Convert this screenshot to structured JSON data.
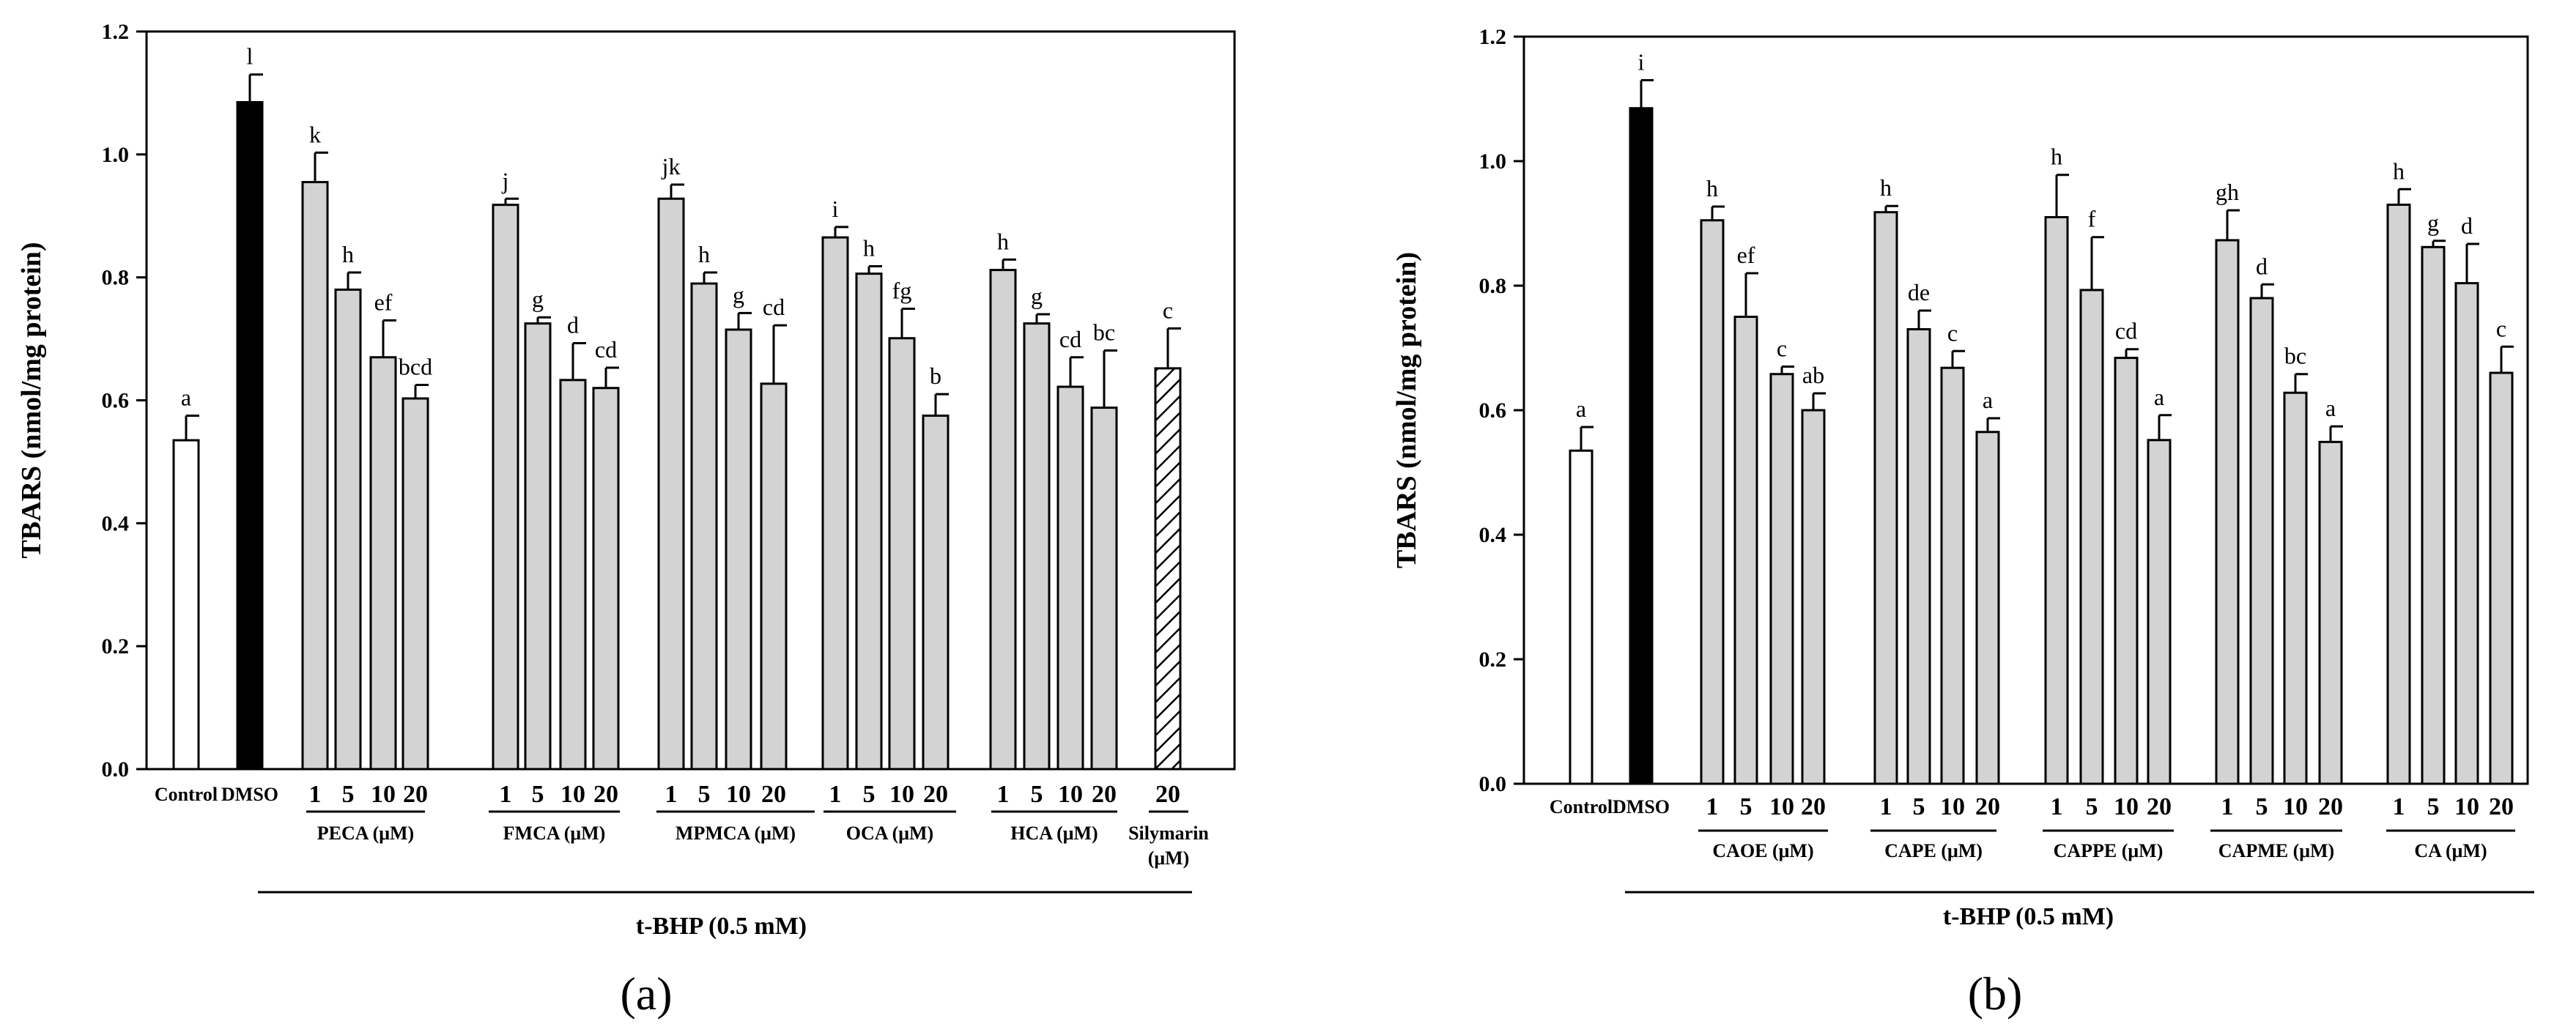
{
  "chart_data": [
    {
      "type": "bar",
      "panel_label": "(a)",
      "ylabel": "TBARS (nmol/mg protein)",
      "xlabel": "t-BHP (0.5 mM)",
      "ylim": [
        0,
        1.2
      ],
      "yticks": [
        "0.0",
        "0.2",
        "0.4",
        "0.6",
        "0.8",
        "1.0",
        "1.2"
      ],
      "colors": {
        "control": "#ffffff",
        "dmso": "#000000",
        "treatment": "#d3d3d3",
        "reference": "hatched"
      },
      "bars": [
        {
          "group": "control",
          "label": "Control",
          "value": 0.535,
          "error": 0.04,
          "letter": "a",
          "style": "control"
        },
        {
          "group": "dmso",
          "label": "DMSO",
          "value": 1.085,
          "error": 0.045,
          "letter": "l",
          "style": "dmso"
        },
        {
          "group": "PECA (μM)",
          "label": "1",
          "value": 0.955,
          "error": 0.048,
          "letter": "k",
          "style": "treatment"
        },
        {
          "group": "PECA (μM)",
          "label": "5",
          "value": 0.78,
          "error": 0.028,
          "letter": "h",
          "style": "treatment"
        },
        {
          "group": "PECA (μM)",
          "label": "10",
          "value": 0.67,
          "error": 0.06,
          "letter": "ef",
          "style": "treatment"
        },
        {
          "group": "PECA (μM)",
          "label": "20",
          "value": 0.603,
          "error": 0.022,
          "letter": "bcd",
          "style": "treatment"
        },
        {
          "group": "FMCA (μM)",
          "label": "1",
          "value": 0.918,
          "error": 0.01,
          "letter": "j",
          "style": "treatment"
        },
        {
          "group": "FMCA (μM)",
          "label": "5",
          "value": 0.725,
          "error": 0.01,
          "letter": "g",
          "style": "treatment"
        },
        {
          "group": "FMCA (μM)",
          "label": "10",
          "value": 0.633,
          "error": 0.06,
          "letter": "d",
          "style": "treatment"
        },
        {
          "group": "FMCA (μM)",
          "label": "20",
          "value": 0.62,
          "error": 0.033,
          "letter": "cd",
          "style": "treatment"
        },
        {
          "group": "MPMCA (μM)",
          "label": "1",
          "value": 0.928,
          "error": 0.023,
          "letter": "jk",
          "style": "treatment"
        },
        {
          "group": "MPMCA (μM)",
          "label": "5",
          "value": 0.79,
          "error": 0.018,
          "letter": "h",
          "style": "treatment"
        },
        {
          "group": "MPMCA (μM)",
          "label": "10",
          "value": 0.715,
          "error": 0.027,
          "letter": "g",
          "style": "treatment"
        },
        {
          "group": "MPMCA (μM)",
          "label": "20",
          "value": 0.627,
          "error": 0.095,
          "letter": "cd",
          "style": "treatment"
        },
        {
          "group": "OCA (μM)",
          "label": "1",
          "value": 0.865,
          "error": 0.017,
          "letter": "i",
          "style": "treatment"
        },
        {
          "group": "OCA (μM)",
          "label": "5",
          "value": 0.806,
          "error": 0.012,
          "letter": "h",
          "style": "treatment"
        },
        {
          "group": "OCA (μM)",
          "label": "10",
          "value": 0.701,
          "error": 0.048,
          "letter": "fg",
          "style": "treatment"
        },
        {
          "group": "OCA (μM)",
          "label": "20",
          "value": 0.575,
          "error": 0.035,
          "letter": "b",
          "style": "treatment"
        },
        {
          "group": "HCA (μM)",
          "label": "1",
          "value": 0.812,
          "error": 0.017,
          "letter": "h",
          "style": "treatment"
        },
        {
          "group": "HCA (μM)",
          "label": "5",
          "value": 0.725,
          "error": 0.015,
          "letter": "g",
          "style": "treatment"
        },
        {
          "group": "HCA (μM)",
          "label": "10",
          "value": 0.622,
          "error": 0.048,
          "letter": "cd",
          "style": "treatment"
        },
        {
          "group": "HCA (μM)",
          "label": "20",
          "value": 0.588,
          "error": 0.093,
          "letter": "bc",
          "style": "treatment"
        },
        {
          "group": "Silymarin (μM)",
          "label": "20",
          "value": 0.652,
          "error": 0.065,
          "letter": "c",
          "style": "reference"
        }
      ]
    },
    {
      "type": "bar",
      "panel_label": "(b)",
      "ylabel": "TBARS (nmol/mg protein)",
      "xlabel": "t-BHP (0.5 mM)",
      "ylim": [
        0,
        1.2
      ],
      "yticks": [
        "0.0",
        "0.2",
        "0.4",
        "0.6",
        "0.8",
        "1.0",
        "1.2"
      ],
      "colors": {
        "control": "#ffffff",
        "dmso": "#000000",
        "treatment": "#d3d3d3"
      },
      "bars": [
        {
          "group": "control",
          "label": "Control",
          "value": 0.535,
          "error": 0.038,
          "letter": "a",
          "style": "control"
        },
        {
          "group": "dmso",
          "label": "DMSO",
          "value": 1.085,
          "error": 0.045,
          "letter": "i",
          "style": "dmso"
        },
        {
          "group": "CAOE (μM)",
          "label": "1",
          "value": 0.905,
          "error": 0.022,
          "letter": "h",
          "style": "treatment"
        },
        {
          "group": "CAOE (μM)",
          "label": "5",
          "value": 0.75,
          "error": 0.07,
          "letter": "ef",
          "style": "treatment"
        },
        {
          "group": "CAOE (μM)",
          "label": "10",
          "value": 0.658,
          "error": 0.012,
          "letter": "c",
          "style": "treatment"
        },
        {
          "group": "CAOE (μM)",
          "label": "20",
          "value": 0.6,
          "error": 0.027,
          "letter": "ab",
          "style": "treatment"
        },
        {
          "group": "CAPE (μM)",
          "label": "1",
          "value": 0.918,
          "error": 0.01,
          "letter": "h",
          "style": "treatment"
        },
        {
          "group": "CAPE (μM)",
          "label": "5",
          "value": 0.73,
          "error": 0.03,
          "letter": "de",
          "style": "treatment"
        },
        {
          "group": "CAPE (μM)",
          "label": "10",
          "value": 0.668,
          "error": 0.027,
          "letter": "c",
          "style": "treatment"
        },
        {
          "group": "CAPE (μM)",
          "label": "20",
          "value": 0.565,
          "error": 0.022,
          "letter": "a",
          "style": "treatment"
        },
        {
          "group": "CAPPE (μM)",
          "label": "1",
          "value": 0.91,
          "error": 0.068,
          "letter": "h",
          "style": "treatment"
        },
        {
          "group": "CAPPE (μM)",
          "label": "5",
          "value": 0.793,
          "error": 0.085,
          "letter": "f",
          "style": "treatment"
        },
        {
          "group": "CAPPE (μM)",
          "label": "10",
          "value": 0.684,
          "error": 0.014,
          "letter": "cd",
          "style": "treatment"
        },
        {
          "group": "CAPPE (μM)",
          "label": "20",
          "value": 0.552,
          "error": 0.04,
          "letter": "a",
          "style": "treatment"
        },
        {
          "group": "CAPME (μM)",
          "label": "1",
          "value": 0.873,
          "error": 0.048,
          "letter": "gh",
          "style": "treatment"
        },
        {
          "group": "CAPME (μM)",
          "label": "5",
          "value": 0.78,
          "error": 0.022,
          "letter": "d",
          "style": "treatment"
        },
        {
          "group": "CAPME (μM)",
          "label": "10",
          "value": 0.628,
          "error": 0.03,
          "letter": "bc",
          "style": "treatment"
        },
        {
          "group": "CAPME (μM)",
          "label": "20",
          "value": 0.549,
          "error": 0.025,
          "letter": "a",
          "style": "treatment"
        },
        {
          "group": "CA (μM)",
          "label": "1",
          "value": 0.93,
          "error": 0.025,
          "letter": "h",
          "style": "treatment"
        },
        {
          "group": "CA (μM)",
          "label": "5",
          "value": 0.862,
          "error": 0.01,
          "letter": "g",
          "style": "treatment"
        },
        {
          "group": "CA (μM)",
          "label": "10",
          "value": 0.804,
          "error": 0.063,
          "letter": "d",
          "style": "treatment"
        },
        {
          "group": "CA (μM)",
          "label": "20",
          "value": 0.66,
          "error": 0.042,
          "letter": "c",
          "style": "treatment"
        }
      ]
    }
  ]
}
